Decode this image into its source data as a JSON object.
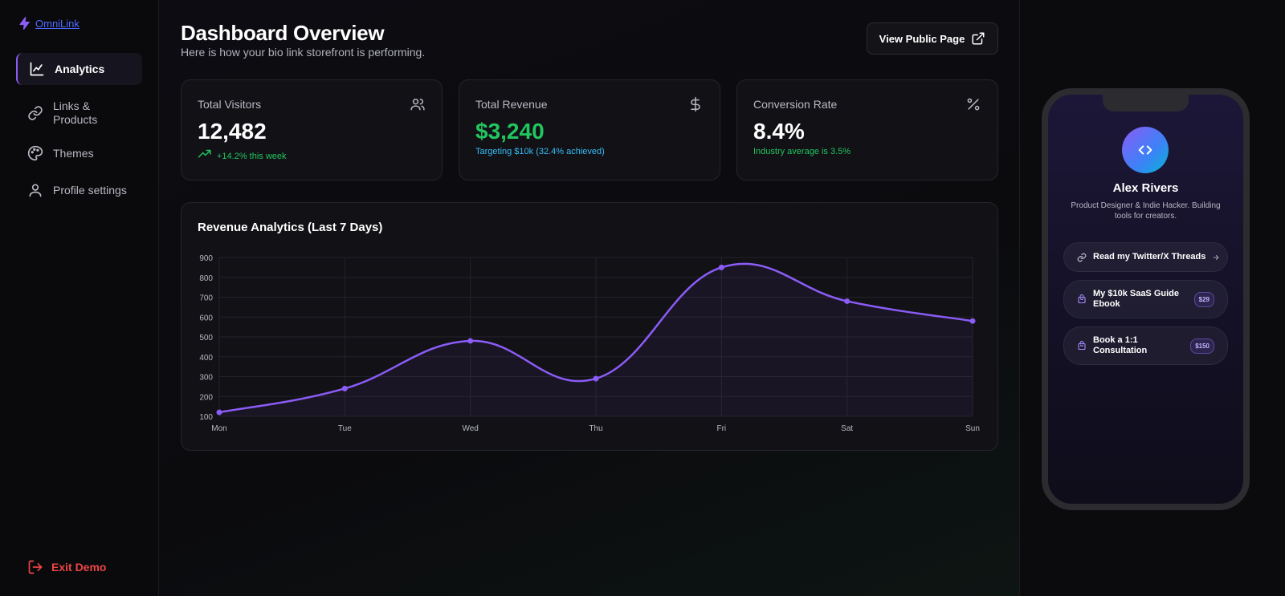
{
  "brand": {
    "name": "OmniLink"
  },
  "sidebar": {
    "items": [
      {
        "label": "Analytics",
        "icon": "line-chart-icon",
        "active": true
      },
      {
        "label": "Links & Products",
        "icon": "link-icon",
        "active": false
      },
      {
        "label": "Themes",
        "icon": "palette-icon",
        "active": false
      },
      {
        "label": "Profile settings",
        "icon": "user-icon",
        "active": false
      }
    ],
    "exit_label": "Exit Demo"
  },
  "header": {
    "title": "Dashboard Overview",
    "subtitle": "Here is how your bio link storefront is performing.",
    "view_button": "View Public Page"
  },
  "stats": [
    {
      "label": "Total Visitors",
      "value": "12,482",
      "sub": "+14.2% this week",
      "icon": "users-icon"
    },
    {
      "label": "Total Revenue",
      "value": "$3,240",
      "sub": "Targeting $10k (32.4% achieved)",
      "icon": "dollar-icon"
    },
    {
      "label": "Conversion Rate",
      "value": "8.4%",
      "sub": "Industry average is 3.5%",
      "icon": "percent-icon"
    }
  ],
  "chart_data": {
    "type": "line",
    "title": "Revenue Analytics (Last 7 Days)",
    "categories": [
      "Mon",
      "Tue",
      "Wed",
      "Thu",
      "Fri",
      "Sat",
      "Sun"
    ],
    "values": [
      120,
      240,
      480,
      290,
      850,
      680,
      580
    ],
    "ylim": [
      100,
      900
    ],
    "yticks": [
      100,
      200,
      300,
      400,
      500,
      600,
      700,
      800,
      900
    ],
    "grid": true,
    "line_color": "#8b5cf6"
  },
  "preview": {
    "name": "Alex Rivers",
    "bio": "Product Designer & Indie Hacker. Building tools for creators.",
    "links": [
      {
        "label": "Read my Twitter/X Threads",
        "icon": "link-icon",
        "price": ""
      },
      {
        "label": "My $10k SaaS Guide Ebook",
        "icon": "bag-icon",
        "price": "$29"
      },
      {
        "label": "Book a 1:1 Consultation",
        "icon": "bag-icon",
        "price": "$150"
      }
    ]
  }
}
